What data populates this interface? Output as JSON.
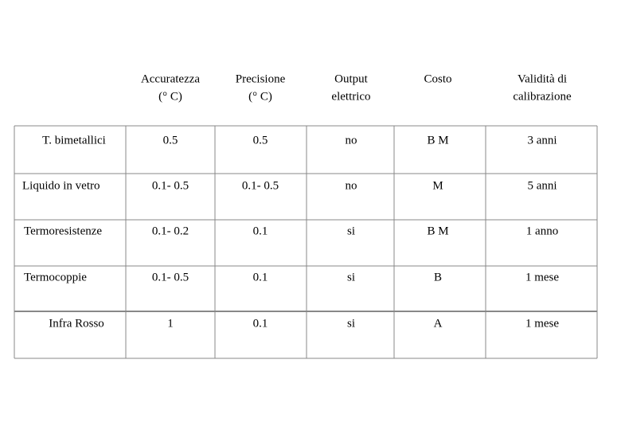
{
  "table": {
    "header": [
      [
        "Accuratezza",
        "(° C)"
      ],
      [
        "Precisione",
        "(° C)"
      ],
      [
        "Output",
        "elettrico"
      ],
      [
        "Costo"
      ],
      [
        "Validità di",
        "calibrazione"
      ]
    ],
    "rows": [
      [
        "T. bimetallici",
        "0.5",
        "0.5",
        "no",
        "B M",
        "3 anni"
      ],
      [
        "Liquido in vetro",
        "0.1- 0.5",
        "0.1- 0.5",
        "no",
        "M",
        "5 anni"
      ],
      [
        "Termoresistenze",
        "0.1- 0.2",
        "0.1",
        "si",
        "B M",
        "1 anno"
      ],
      [
        "Termocoppie",
        "0.1- 0.5",
        "0.1",
        "si",
        "B",
        "1 mese"
      ],
      [
        "Infra Rosso",
        "1",
        "0.1",
        "si",
        "A",
        "1 mese"
      ]
    ]
  }
}
